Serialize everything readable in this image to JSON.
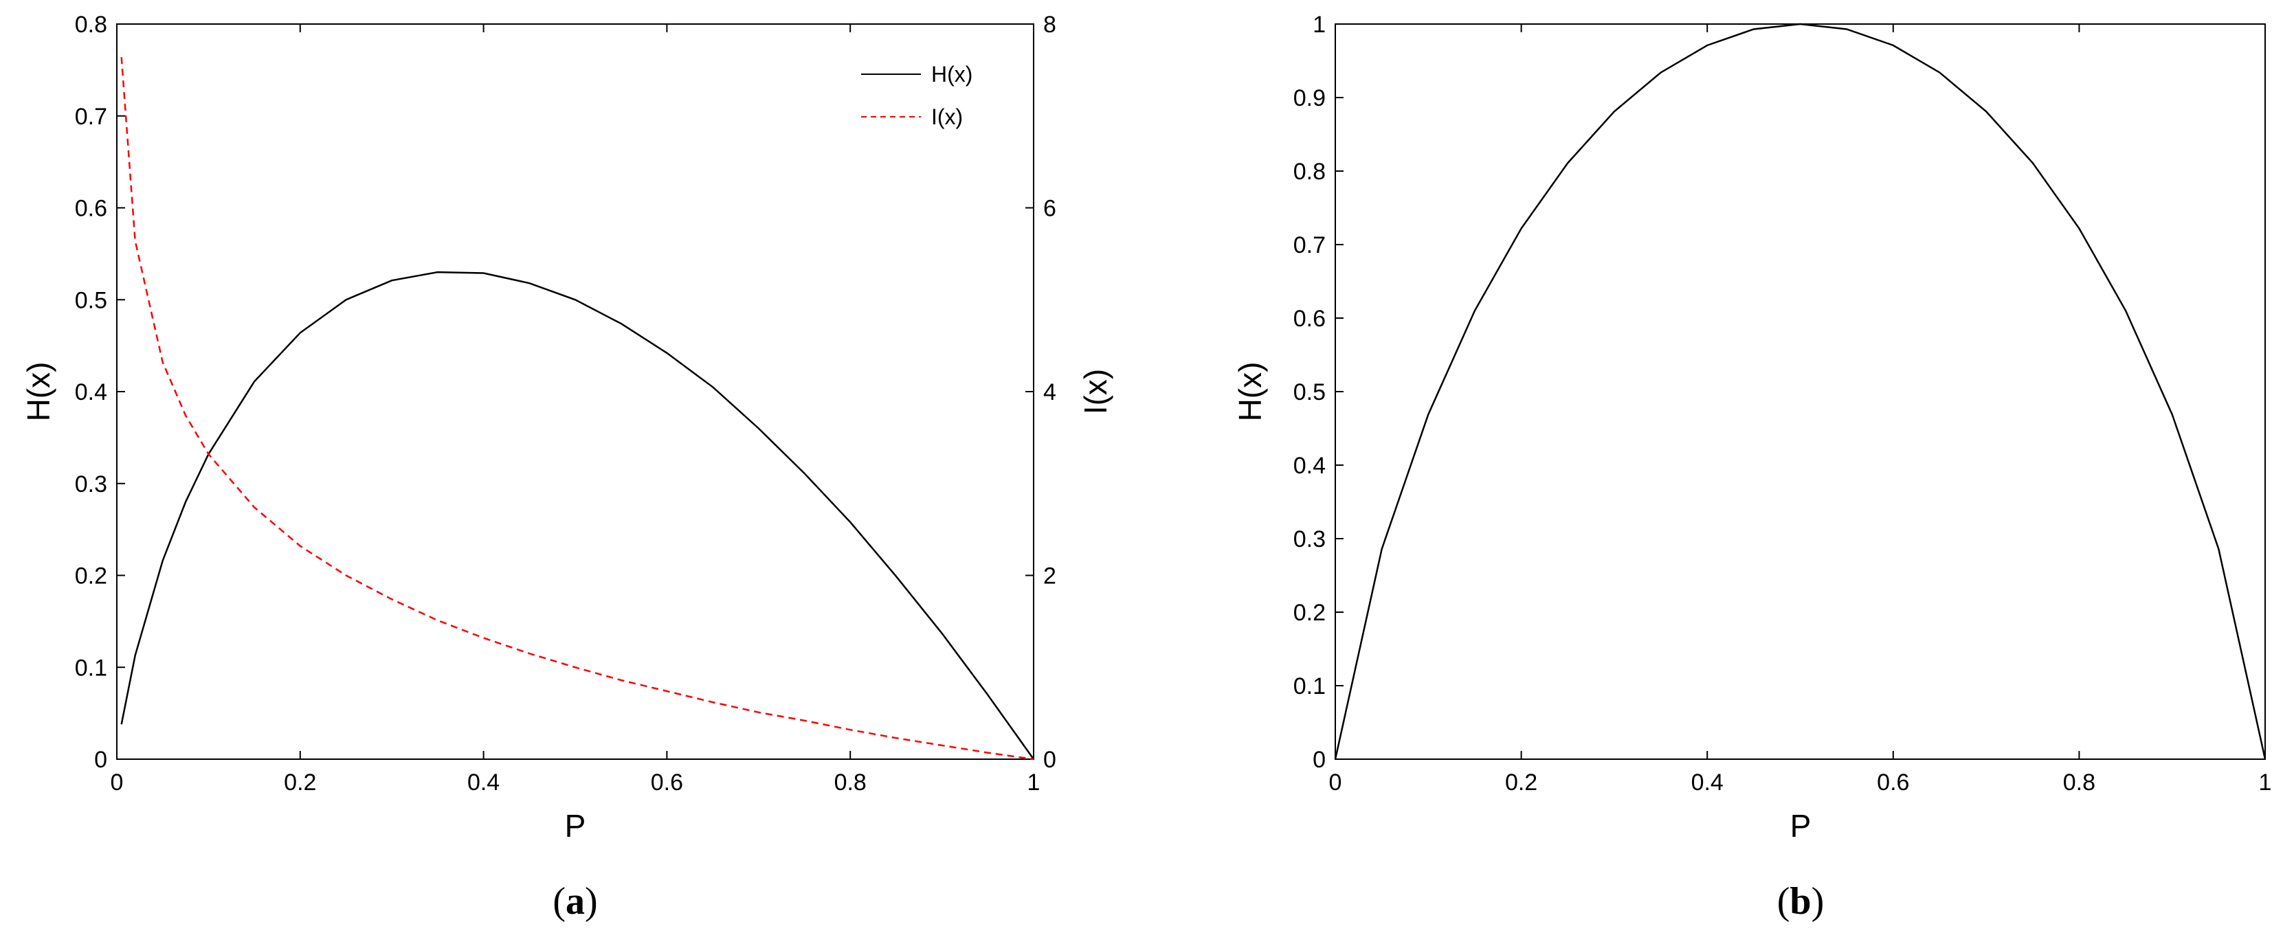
{
  "chart_data": [
    {
      "type": "line",
      "panel_label": "a",
      "xlabel": "P",
      "ylabel_left": "H(x)",
      "ylabel_right": "I(x)",
      "xlim": [
        0,
        1
      ],
      "ylim_left": [
        0,
        0.8
      ],
      "ylim_right": [
        0,
        8
      ],
      "xticks": [
        "0",
        "0.2",
        "0.4",
        "0.6",
        "0.8",
        "1"
      ],
      "yticks_left": [
        "0",
        "0.1",
        "0.2",
        "0.3",
        "0.4",
        "0.5",
        "0.6",
        "0.7",
        "0.8"
      ],
      "yticks_right": [
        "0",
        "2",
        "4",
        "6",
        "8"
      ],
      "grid": false,
      "legend_position": "top-right",
      "series": [
        {
          "name": "H(x)",
          "axis": "left",
          "style": "solid",
          "color": "#000000",
          "x": [
            0.005,
            0.02,
            0.05,
            0.075,
            0.1,
            0.15,
            0.2,
            0.25,
            0.3,
            0.35,
            0.4,
            0.45,
            0.5,
            0.55,
            0.6,
            0.65,
            0.7,
            0.75,
            0.8,
            0.85,
            0.9,
            0.95,
            1.0
          ],
          "y": [
            0.038,
            0.113,
            0.216,
            0.28,
            0.332,
            0.411,
            0.464,
            0.5,
            0.521,
            0.53,
            0.529,
            0.518,
            0.5,
            0.474,
            0.442,
            0.405,
            0.36,
            0.311,
            0.258,
            0.199,
            0.137,
            0.07,
            0.0
          ]
        },
        {
          "name": "I(x)",
          "axis": "right",
          "style": "dashed",
          "color": "#ff0000",
          "x": [
            0.005,
            0.02,
            0.05,
            0.075,
            0.1,
            0.15,
            0.2,
            0.25,
            0.3,
            0.35,
            0.4,
            0.45,
            0.5,
            0.55,
            0.6,
            0.65,
            0.7,
            0.75,
            0.8,
            0.85,
            0.9,
            0.95,
            1.0
          ],
          "y": [
            7.64,
            5.64,
            4.32,
            3.74,
            3.32,
            2.74,
            2.32,
            2.0,
            1.74,
            1.51,
            1.32,
            1.15,
            1.0,
            0.86,
            0.74,
            0.62,
            0.51,
            0.42,
            0.32,
            0.23,
            0.15,
            0.07,
            0.0
          ]
        }
      ]
    },
    {
      "type": "line",
      "panel_label": "b",
      "xlabel": "P",
      "ylabel": "H(x)",
      "xlim": [
        0,
        1
      ],
      "ylim": [
        0,
        1
      ],
      "xticks": [
        "0",
        "0.2",
        "0.4",
        "0.6",
        "0.8",
        "1"
      ],
      "yticks": [
        "0",
        "0.1",
        "0.2",
        "0.3",
        "0.4",
        "0.5",
        "0.6",
        "0.7",
        "0.8",
        "0.9",
        "1"
      ],
      "grid": false,
      "series": [
        {
          "style": "solid",
          "color": "#000000",
          "x": [
            0,
            0.05,
            0.1,
            0.15,
            0.2,
            0.25,
            0.3,
            0.35,
            0.4,
            0.45,
            0.5,
            0.55,
            0.6,
            0.65,
            0.7,
            0.75,
            0.8,
            0.85,
            0.9,
            0.95,
            1.0
          ],
          "y": [
            0,
            0.286,
            0.469,
            0.61,
            0.722,
            0.811,
            0.881,
            0.934,
            0.971,
            0.993,
            1.0,
            0.993,
            0.971,
            0.934,
            0.881,
            0.811,
            0.722,
            0.61,
            0.469,
            0.286,
            0
          ]
        }
      ]
    }
  ]
}
